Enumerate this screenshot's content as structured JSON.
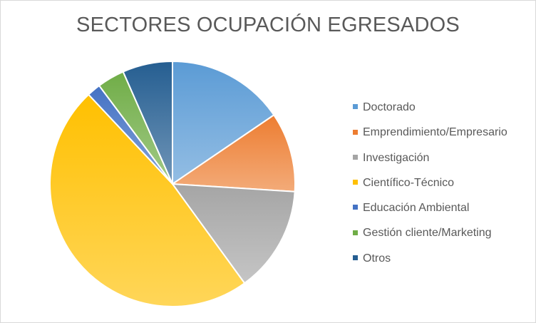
{
  "chart_data": {
    "type": "pie",
    "title": "SECTORES OCUPACIÓN EGRESADOS",
    "categories": [
      "Doctorado",
      "Emprendimiento/Empresario",
      "Investigación",
      "Científico-Técnico",
      "Educación Ambiental",
      "Gestión cliente/Marketing",
      "Otros"
    ],
    "values": [
      15.5,
      10.5,
      14.0,
      48.0,
      1.8,
      3.6,
      6.6
    ],
    "colors": [
      "#5b9bd5",
      "#ed7d31",
      "#a5a5a5",
      "#ffc000",
      "#4472c4",
      "#70ad47",
      "#255e91"
    ],
    "legend_position": "right",
    "start_angle_deg": 0,
    "direction": "clockwise"
  }
}
